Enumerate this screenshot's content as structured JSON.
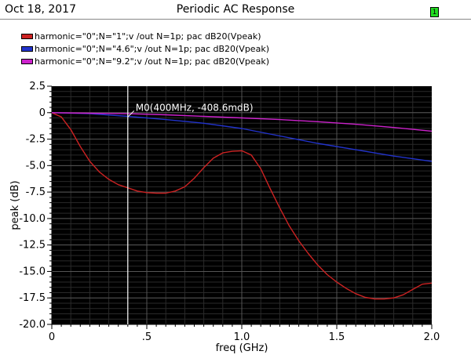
{
  "header": {
    "date": "Oct 18, 2017",
    "title": "Periodic AC Response",
    "badge": "1"
  },
  "legend": [
    {
      "label": "harmonic=\"0\";N=\"1\";v /out N=1p; pac dB20(Vpeak)",
      "color": "#cc2222"
    },
    {
      "label": "harmonic=\"0\";N=\"4.6\";v /out N=1p; pac dB20(Vpeak)",
      "color": "#2233cc"
    },
    {
      "label": "harmonic=\"0\";N=\"9.2\";v /out N=1p; pac dB20(Vpeak)",
      "color": "#cc22cc"
    }
  ],
  "chart_data": {
    "type": "line",
    "title": "Periodic AC Response",
    "xlabel": "freq (GHz)",
    "ylabel": "peak (dB)",
    "xlim": [
      0,
      2.0
    ],
    "ylim": [
      -20.0,
      2.5
    ],
    "grid": true,
    "x_ticks": [
      0,
      0.5,
      1.0,
      1.5,
      2.0
    ],
    "x_tick_labels": [
      "0",
      ".5",
      "1.0",
      "1.5",
      "2.0"
    ],
    "y_ticks": [
      2.5,
      0,
      -2.5,
      -5.0,
      -7.5,
      -10.0,
      -12.5,
      -15.0,
      -17.5,
      -20.0
    ],
    "y_tick_labels": [
      "2.5",
      "0",
      "-2.5",
      "-5.0",
      "-7.5",
      "-10.0",
      "-12.5",
      "-15.0",
      "-17.5",
      "-20.0"
    ],
    "series": [
      {
        "name": "harmonic=\"0\";N=\"1\";v /out N=1p; pac dB20(Vpeak)",
        "color": "#cc2222",
        "x": [
          0,
          0.05,
          0.1,
          0.15,
          0.2,
          0.25,
          0.3,
          0.35,
          0.4,
          0.45,
          0.5,
          0.55,
          0.6,
          0.65,
          0.7,
          0.75,
          0.8,
          0.85,
          0.9,
          0.95,
          1.0,
          1.05,
          1.1,
          1.15,
          1.2,
          1.25,
          1.3,
          1.35,
          1.4,
          1.45,
          1.5,
          1.55,
          1.6,
          1.65,
          1.7,
          1.75,
          1.8,
          1.85,
          1.9,
          1.95,
          2.0
        ],
        "y": [
          0,
          -0.4,
          -1.6,
          -3.2,
          -4.6,
          -5.6,
          -6.3,
          -6.8,
          -7.1,
          -7.4,
          -7.55,
          -7.6,
          -7.6,
          -7.4,
          -7.0,
          -6.2,
          -5.2,
          -4.3,
          -3.8,
          -3.65,
          -3.6,
          -4.0,
          -5.3,
          -7.2,
          -9.0,
          -10.7,
          -12.1,
          -13.3,
          -14.4,
          -15.3,
          -16.0,
          -16.6,
          -17.1,
          -17.45,
          -17.6,
          -17.6,
          -17.5,
          -17.2,
          -16.7,
          -16.2,
          -16.1
        ]
      },
      {
        "name": "harmonic=\"0\";N=\"4.6\";v /out N=1p; pac dB20(Vpeak)",
        "color": "#2233cc",
        "x": [
          0,
          0.2,
          0.4,
          0.6,
          0.8,
          1.0,
          1.2,
          1.4,
          1.6,
          1.8,
          2.0
        ],
        "y": [
          0,
          -0.1,
          -0.35,
          -0.65,
          -1.0,
          -1.5,
          -2.2,
          -2.9,
          -3.5,
          -4.1,
          -4.6
        ]
      },
      {
        "name": "harmonic=\"0\";N=\"9.2\";v /out N=1p; pac dB20(Vpeak)",
        "color": "#cc22cc",
        "x": [
          0,
          0.2,
          0.4,
          0.6,
          0.8,
          1.0,
          1.2,
          1.4,
          1.6,
          1.8,
          2.0
        ],
        "y": [
          0,
          -0.05,
          -0.1,
          -0.2,
          -0.35,
          -0.5,
          -0.65,
          -0.85,
          -1.1,
          -1.4,
          -1.75
        ]
      }
    ],
    "marker": {
      "label": "M0(400MHz, -408.6mdB)",
      "x": 0.4,
      "y": -0.4086
    }
  }
}
